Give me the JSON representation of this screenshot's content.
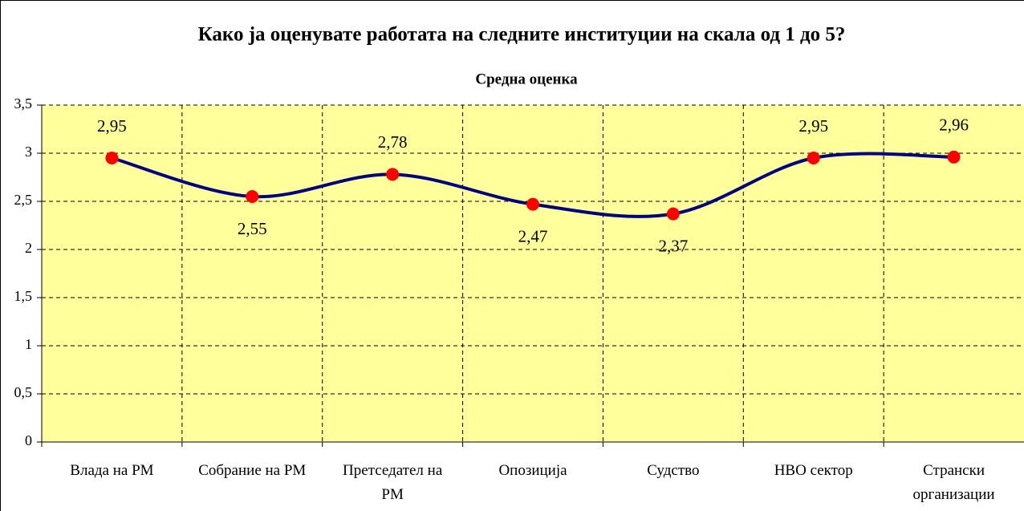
{
  "chart_data": {
    "type": "line",
    "title": "Како ја оценувате работата на следните институции на скала од 1 до 5?",
    "subtitle": "Средна оценка",
    "categories": [
      "Влада на РМ",
      "Собрание на РМ",
      "Претседател на РМ",
      "Опозиција",
      "Судство",
      "НВО сектор",
      "Странски организации"
    ],
    "series": [
      {
        "name": "Средна оценка",
        "color": "#000080",
        "marker_color": "#ff0000",
        "values": [
          2.95,
          2.55,
          2.78,
          2.47,
          2.37,
          2.95,
          2.96
        ],
        "value_labels": [
          "2,95",
          "2,55",
          "2,78",
          "2,47",
          "2,37",
          "2,95",
          "2,96"
        ]
      }
    ],
    "ylim": [
      0,
      3.5
    ],
    "yticks": [
      0,
      {
        "value": 0.5,
        "label": "0,5"
      },
      1,
      {
        "value": 1.5,
        "label": "1,5"
      },
      2,
      {
        "value": 2.5,
        "label": "2,5"
      },
      3,
      {
        "value": 3.5,
        "label": "3,5"
      }
    ],
    "grid": true
  }
}
